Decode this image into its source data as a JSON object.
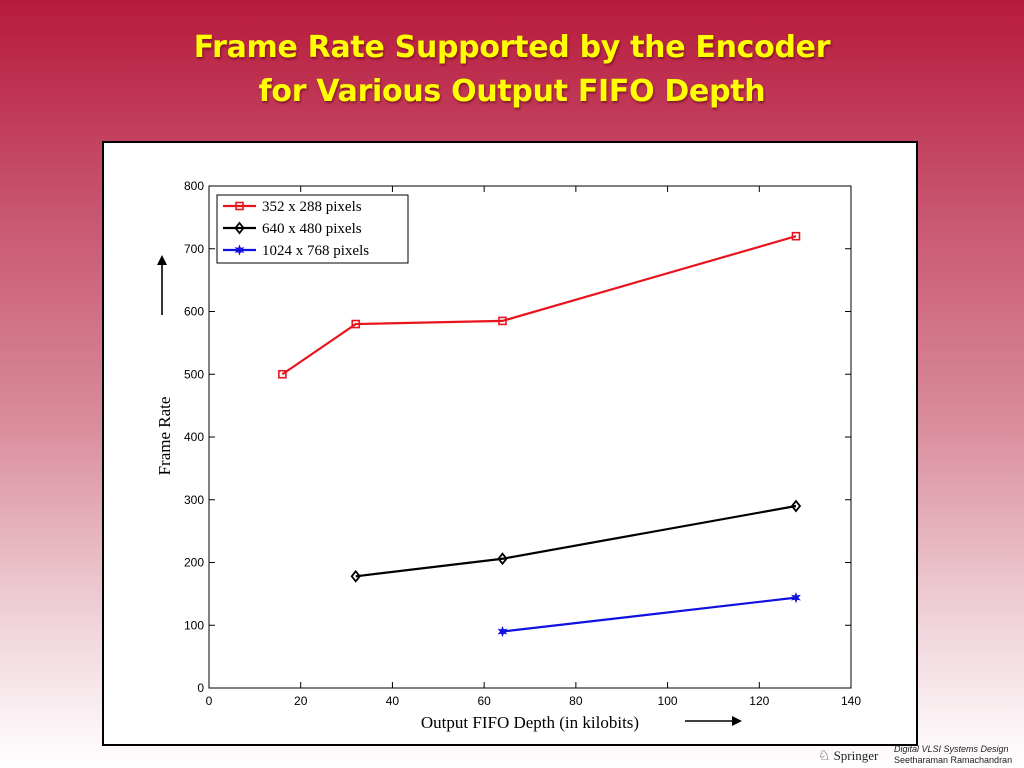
{
  "slide": {
    "title_line1": "Frame Rate Supported by the Encoder",
    "title_line2": "for Various Output FIFO Depth"
  },
  "chart_data": {
    "type": "line",
    "xlabel": "Output FIFO Depth (in kilobits)",
    "ylabel": "Frame Rate",
    "xlim": [
      0,
      140
    ],
    "ylim": [
      0,
      800
    ],
    "xticks": [
      0,
      20,
      40,
      60,
      80,
      100,
      120,
      140
    ],
    "yticks": [
      0,
      100,
      200,
      300,
      400,
      500,
      600,
      700,
      800
    ],
    "grid": false,
    "legend_position": "top-left",
    "series": [
      {
        "name": "352 x 288 pixels",
        "color": "#e8141e",
        "marker": "square",
        "points": [
          [
            16,
            500
          ],
          [
            32,
            580
          ],
          [
            64,
            585
          ],
          [
            128,
            720
          ]
        ]
      },
      {
        "name": "640 x 480 pixels",
        "color": "#000000",
        "marker": "diamond",
        "points": [
          [
            32,
            178
          ],
          [
            64,
            206
          ],
          [
            128,
            290
          ]
        ]
      },
      {
        "name": "1024 x 768 pixels",
        "color": "#1010e0",
        "marker": "star",
        "points": [
          [
            64,
            90
          ],
          [
            128,
            144
          ]
        ]
      }
    ]
  },
  "footer": {
    "publisher": "Springer",
    "book": "Digital VLSI Systems Design",
    "author": "Seetharaman Ramachandran"
  },
  "icons": {
    "x_arrow": "right-arrow-icon",
    "y_arrow": "up-arrow-icon",
    "publisher_logo": "springer-horse-icon"
  }
}
